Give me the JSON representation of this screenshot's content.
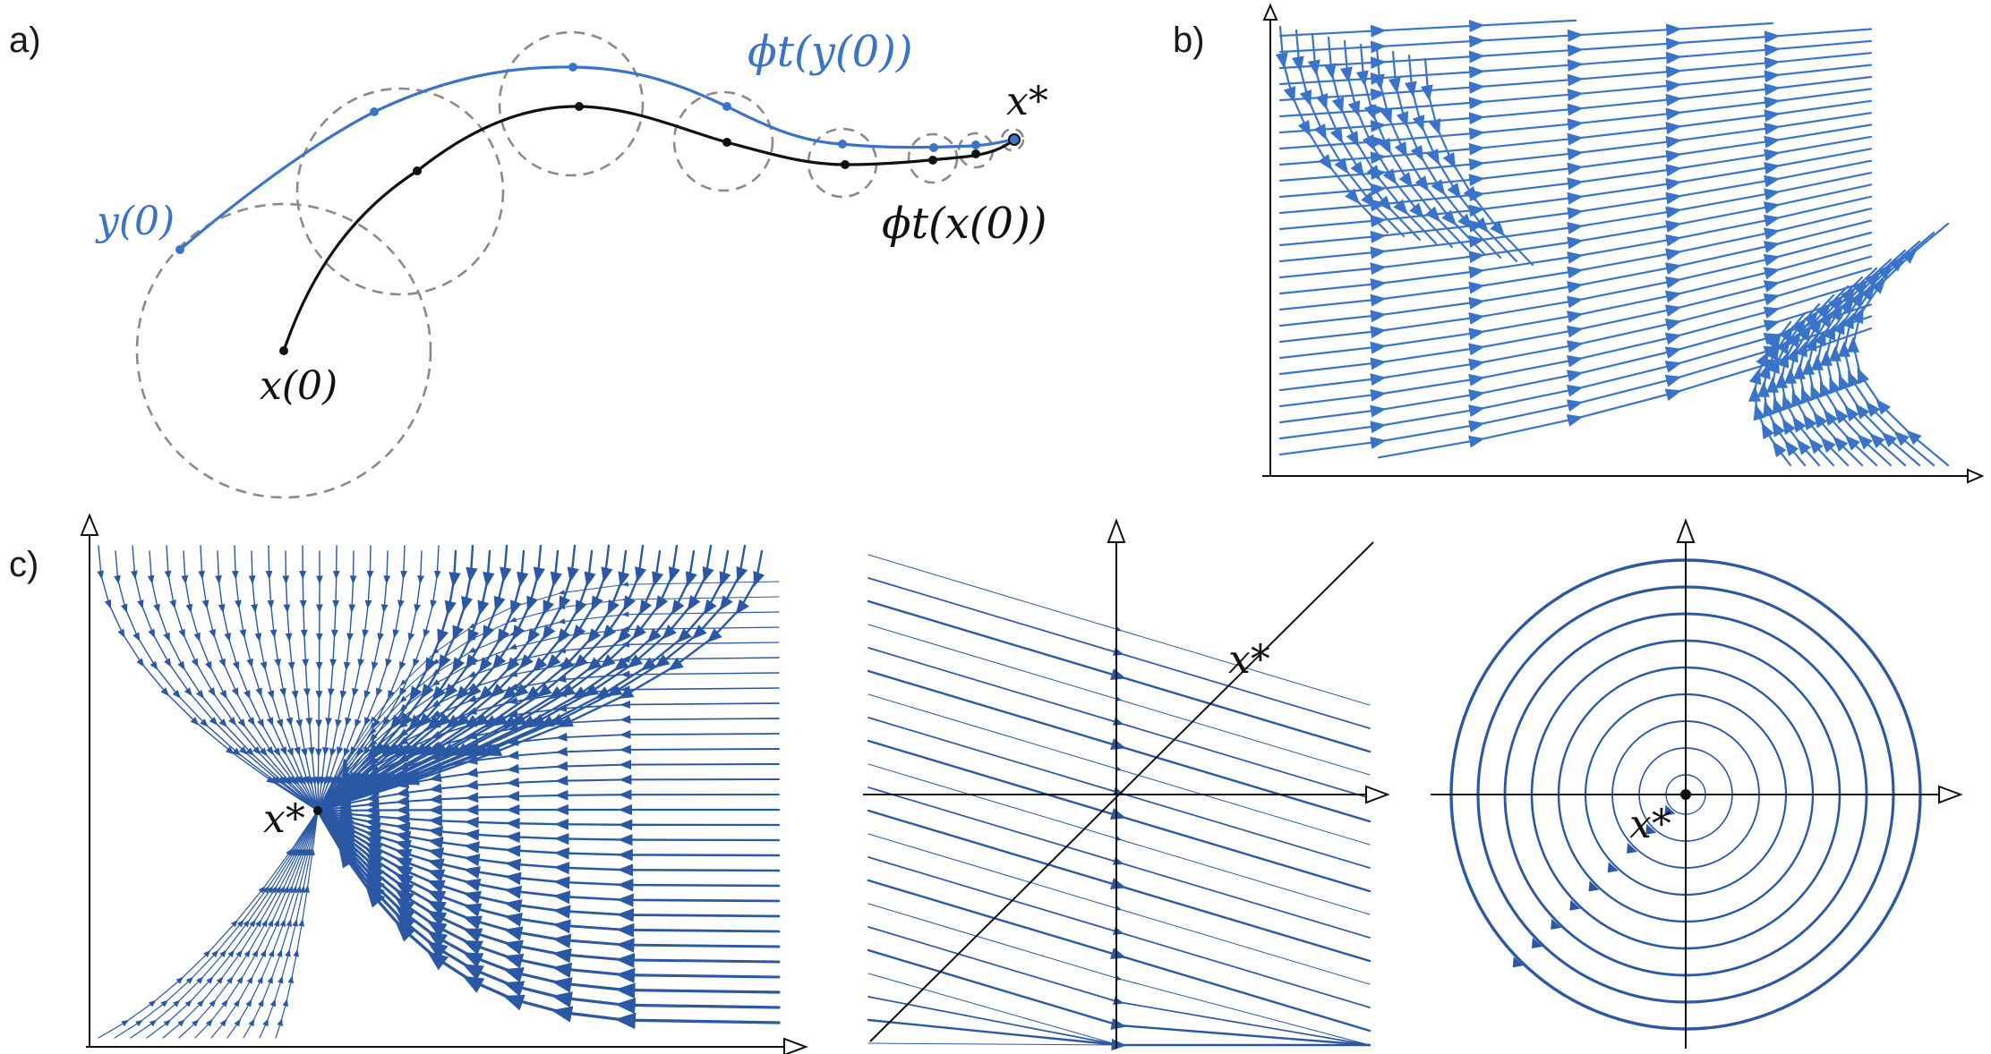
{
  "figure": {
    "colors": {
      "blue": "#3a74c9",
      "dark_blue": "#2b58a5",
      "black": "#111111",
      "gray": "#8a8a8a"
    },
    "panel_a": {
      "label": "a)",
      "y0_label": "y(0)",
      "x0_label": "x(0)",
      "xstar_label": "x*",
      "phi_y_label": "ϕt(y(0))",
      "phi_x_label": "ϕt(x(0))"
    },
    "panel_b": {
      "label": "b)"
    },
    "panel_c": {
      "label": "c)",
      "left_xstar": "x*",
      "middle_xstar": "x*",
      "right_xstar": "x*"
    }
  }
}
